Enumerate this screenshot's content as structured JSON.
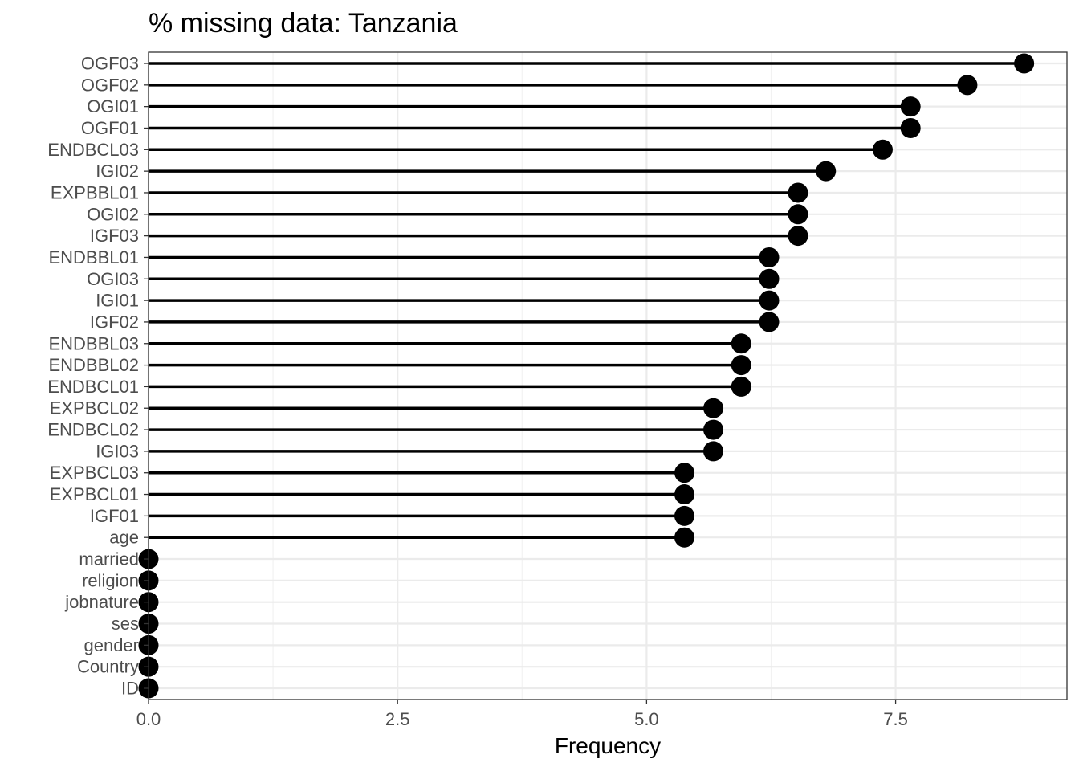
{
  "chart_data": {
    "type": "lollipop",
    "title": "% missing data: Tanzania",
    "xlabel": "Frequency",
    "ylabel": "",
    "xlim": [
      0,
      9.22
    ],
    "x_ticks": [
      0.0,
      2.5,
      5.0,
      7.5
    ],
    "x_tick_labels": [
      "0.0",
      "2.5",
      "5.0",
      "7.5"
    ],
    "grid": true,
    "categories": [
      "OGF03",
      "OGF02",
      "OGI01",
      "OGF01",
      "ENDBCL03",
      "IGI02",
      "EXPBBL01",
      "OGI02",
      "IGF03",
      "ENDBBL01",
      "OGI03",
      "IGI01",
      "IGF02",
      "ENDBBL03",
      "ENDBBL02",
      "ENDBCL01",
      "EXPBCL02",
      "ENDBCL02",
      "IGI03",
      "EXPBCL03",
      "EXPBCL01",
      "IGF01",
      "age",
      "married",
      "religion",
      "jobnature",
      "ses",
      "gender",
      "Country",
      "ID"
    ],
    "values": [
      8.79,
      8.22,
      7.65,
      7.65,
      7.37,
      6.8,
      6.52,
      6.52,
      6.52,
      6.23,
      6.23,
      6.23,
      6.23,
      5.95,
      5.95,
      5.95,
      5.67,
      5.67,
      5.67,
      5.38,
      5.38,
      5.38,
      5.38,
      0.0,
      0.0,
      0.0,
      0.0,
      0.0,
      0.0,
      0.0
    ],
    "colors": {
      "mark": "#000000",
      "panel_border": "#333333",
      "grid_major": "#ebebeb",
      "grid_minor": "#f2f2f2",
      "tick_label": "#4d4d4d",
      "text": "#000000"
    }
  }
}
